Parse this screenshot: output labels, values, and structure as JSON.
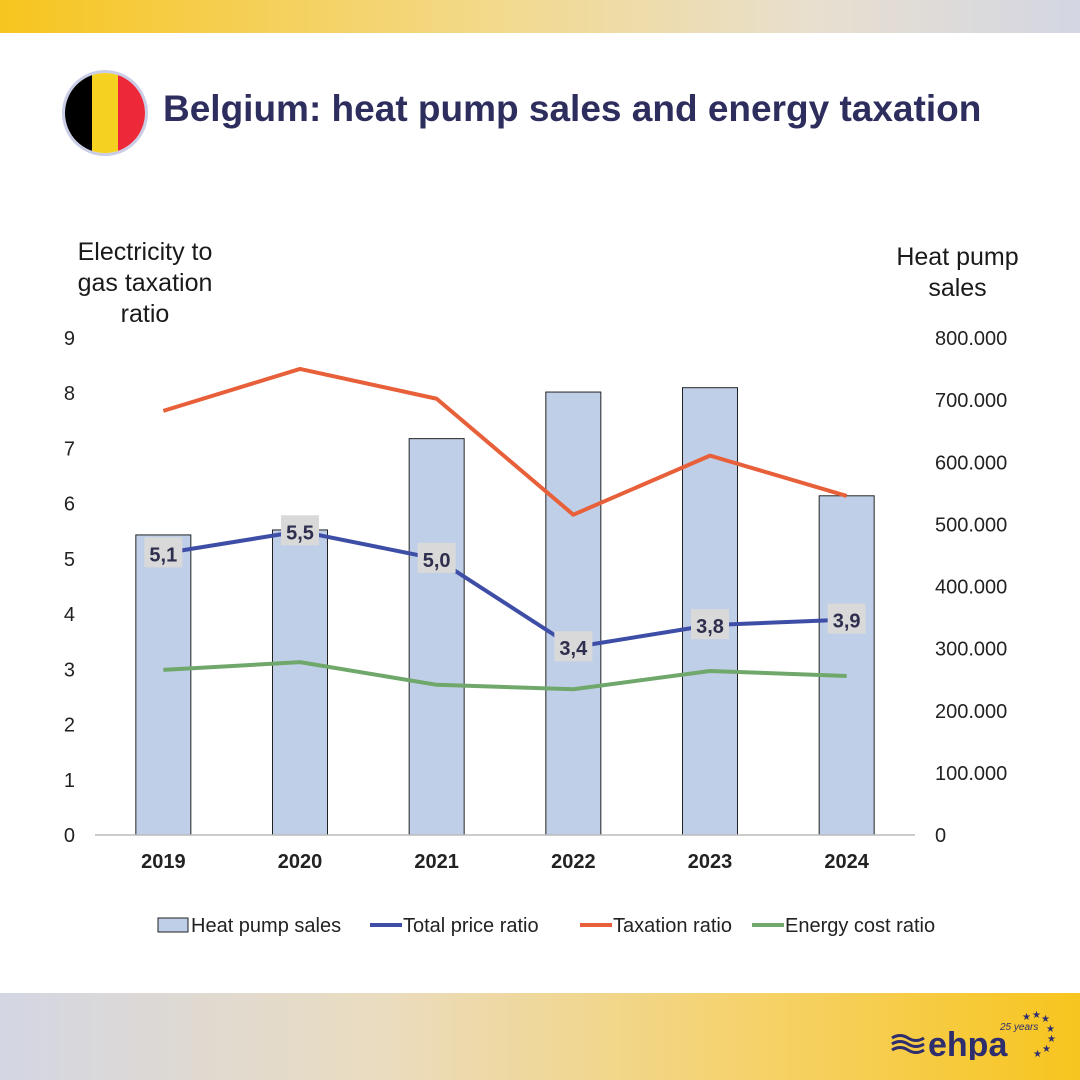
{
  "header": {
    "title": "Belgium: heat pump sales and energy taxation",
    "flag_colors": [
      "#000000",
      "#f5d21f",
      "#ed2939"
    ]
  },
  "logo": {
    "text": "ehpa",
    "subtitle": "25 years"
  },
  "chart_data": {
    "type": "bar",
    "categories": [
      "2019",
      "2020",
      "2021",
      "2022",
      "2023",
      "2024"
    ],
    "ylabel_left": "Electricity to gas taxation ratio",
    "ylabel_right": "Heat pump sales",
    "ylim_left": [
      0,
      9
    ],
    "ylim_right": [
      0,
      800000
    ],
    "left_ticks": [
      "0",
      "1",
      "2",
      "3",
      "4",
      "5",
      "6",
      "7",
      "8",
      "9"
    ],
    "right_ticks": [
      "0",
      "100.000",
      "200.000",
      "300.000",
      "400.000",
      "500.000",
      "600.000",
      "700.000",
      "800.000"
    ],
    "legend_position": "bottom",
    "grid": false,
    "series": [
      {
        "name": "Heat pump sales",
        "type": "bar",
        "axis": "right",
        "color": "#c0cfe8",
        "values": [
          483000,
          491000,
          638000,
          713000,
          720000,
          546000
        ]
      },
      {
        "name": "Total price ratio",
        "type": "line",
        "axis": "left",
        "color": "#3e4ea6",
        "values": [
          5.1,
          5.5,
          5.0,
          3.4,
          3.8,
          3.9
        ],
        "labels": [
          "5,1",
          "5,5",
          "5,0",
          "3,4",
          "3,8",
          "3,9"
        ]
      },
      {
        "name": "Taxation ratio",
        "type": "line",
        "axis": "left",
        "color": "#e8603a",
        "values": [
          7.68,
          8.44,
          7.9,
          5.8,
          6.87,
          6.14
        ]
      },
      {
        "name": "Energy cost ratio",
        "type": "line",
        "axis": "left",
        "color": "#6fa86a",
        "values": [
          2.99,
          3.13,
          2.72,
          2.64,
          2.97,
          2.88
        ]
      }
    ]
  }
}
